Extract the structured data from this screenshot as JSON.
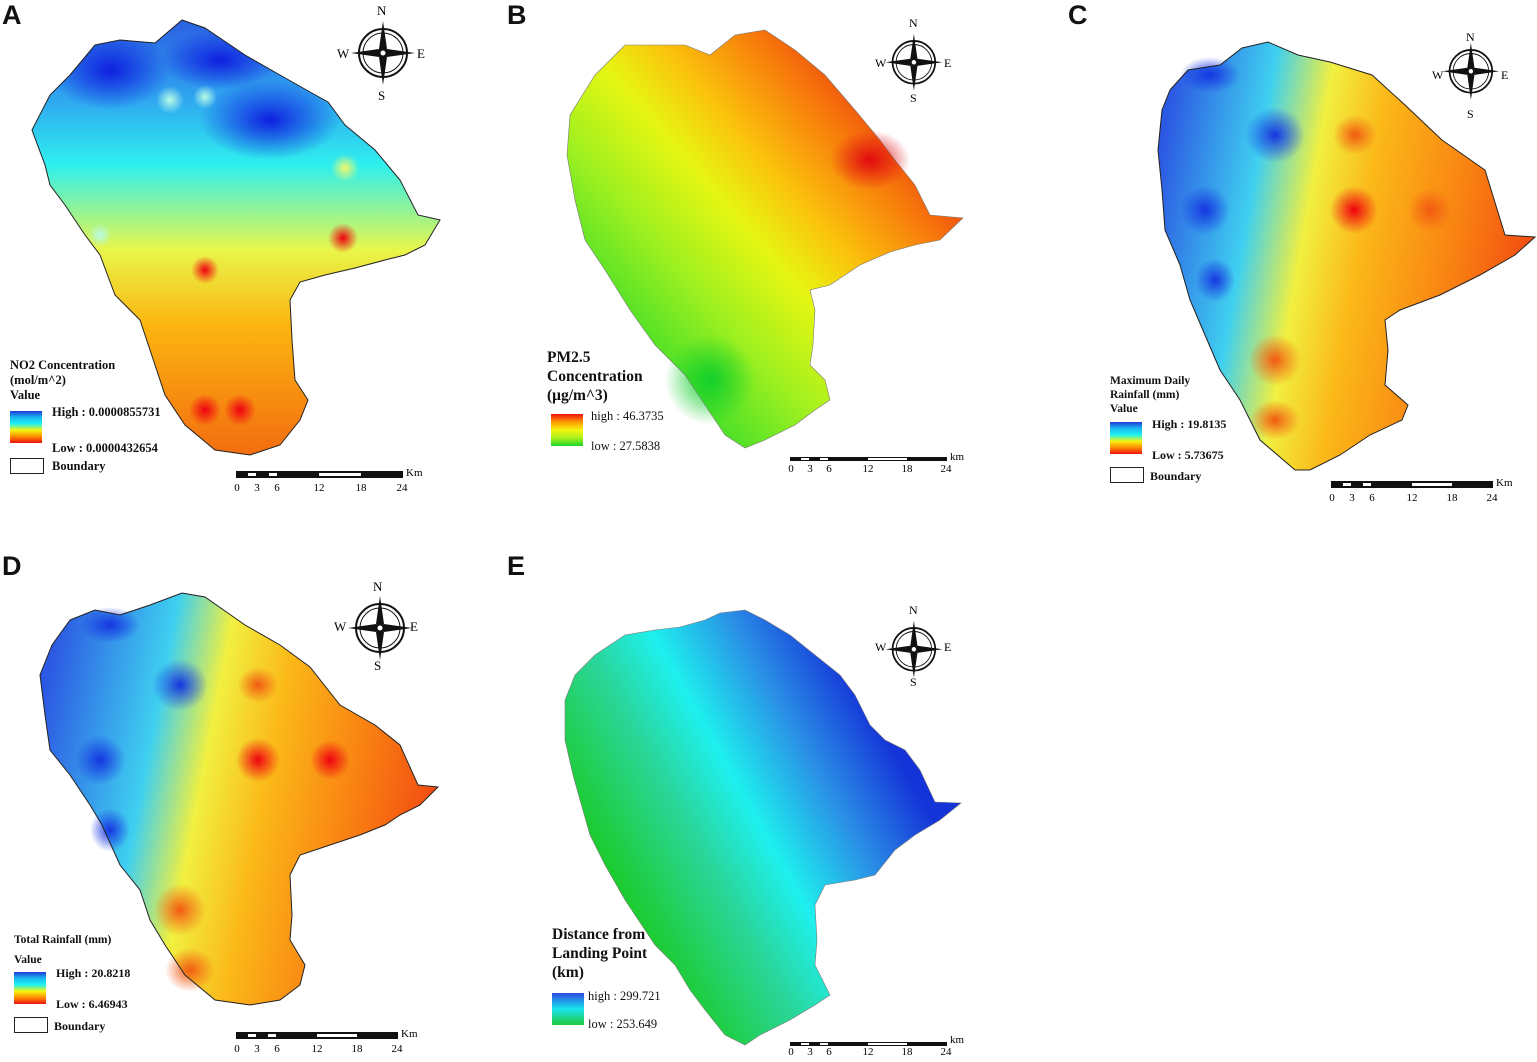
{
  "panels": {
    "A": {
      "label": "A",
      "legend_title_1": "NO2 Concentration",
      "legend_title_2": "(mol/m^2)",
      "legend_value": "Value",
      "high": "High : 0.0000855731",
      "low": "Low : 0.0000432654",
      "boundary": "Boundary"
    },
    "B": {
      "label": "B",
      "legend_title_1": "PM2.5",
      "legend_title_2": "Concentration",
      "legend_title_3": "(μg/m^3)",
      "high": "high : 46.3735",
      "low": "low : 27.5838"
    },
    "C": {
      "label": "C",
      "legend_title_1": "Maximum Daily",
      "legend_title_2": "Rainfall (mm)",
      "legend_value": "Value",
      "high": "High : 19.8135",
      "low": "Low : 5.73675",
      "boundary": "Boundary"
    },
    "D": {
      "label": "D",
      "legend_title_1": "Total Rainfall (mm)",
      "legend_value": "Value",
      "high": "High : 20.8218",
      "low": "Low : 6.46943",
      "boundary": "Boundary"
    },
    "E": {
      "label": "E",
      "legend_title_1": "Distance from",
      "legend_title_2": "Landing Point",
      "legend_title_3": "(km)",
      "high": "high : 299.721",
      "low": "low : 253.649"
    }
  },
  "compass": {
    "n": "N",
    "s": "S",
    "e": "E",
    "w": "W"
  },
  "scalebar": {
    "ticks": [
      "0",
      "3",
      "6",
      "12",
      "18",
      "24"
    ],
    "unit_A": "Km",
    "unit_B": "km",
    "unit_C": "Km",
    "unit_D": "Km",
    "unit_E": "km"
  },
  "colors": {
    "ramp_blue_red": [
      "#1f3bd8",
      "#19b8f0",
      "#1ef2f2",
      "#f5f510",
      "#fd8c00",
      "#ee1010"
    ],
    "ramp_red_green": [
      "#ee1010",
      "#fd9c00",
      "#f5f510",
      "#a8f01c",
      "#1bd62a"
    ],
    "ramp_blue_green": [
      "#2c4ddf",
      "#19e3ee",
      "#22c93a"
    ]
  }
}
